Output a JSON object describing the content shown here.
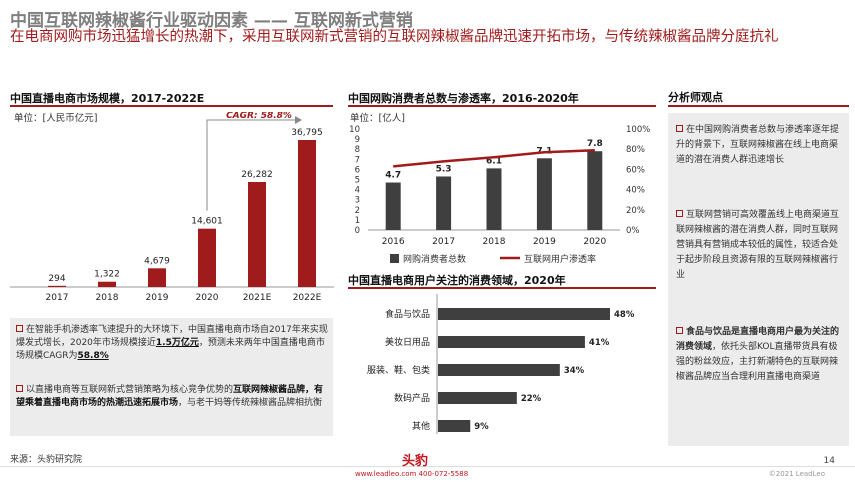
{
  "header": {
    "title": "中国互联网辣椒酱行业驱动因素 —— 互联网新式营销",
    "subtitle": "在电商网购市场迅猛增长的热潮下，采用互联网新式营销的互联网辣椒酱品牌迅速开拓市场，与传统辣椒酱品牌分庭抗礼"
  },
  "live_chart": {
    "title": "中国直播电商市场规模，2017-2022E",
    "unit": "单位：[人民币亿元]",
    "cagr_label": "CAGR: 58.8%",
    "bar_color": "#a01c1c",
    "chart_data": {
      "type": "bar",
      "categories": [
        "2017",
        "2018",
        "2019",
        "2020",
        "2021E",
        "2022E"
      ],
      "values": [
        294,
        1322,
        4679,
        14601,
        26282,
        36795
      ],
      "value_labels": [
        "294",
        "1,322",
        "4,679",
        "14,601",
        "26,282",
        "36,795"
      ],
      "ylim": [
        0,
        36795
      ]
    }
  },
  "online_chart": {
    "title": "中国网购消费者总数与渗透率，2016-2020年",
    "unit": "单位：[亿人]",
    "bar_color": "#3f3f3f",
    "line_color": "#a01c1c",
    "legend": [
      "网购消费者总数",
      "互联网用户渗透率"
    ],
    "chart_data": {
      "type": "bar",
      "categories": [
        "2016",
        "2017",
        "2018",
        "2019",
        "2020"
      ],
      "series": [
        {
          "name": "网购消费者总数",
          "values": [
            4.7,
            5.3,
            6.1,
            7.1,
            7.8
          ],
          "labels": [
            "4.7",
            "5.3",
            "6.1",
            "7.1",
            "7.8"
          ]
        },
        {
          "name": "互联网用户渗透率",
          "values": [
            63,
            68,
            72,
            77,
            79
          ]
        }
      ],
      "y_ticks": [
        "0",
        "1",
        "2",
        "3",
        "4",
        "5",
        "6",
        "7",
        "8",
        "9",
        "10"
      ],
      "y2_ticks": [
        "0%",
        "20%",
        "40%",
        "60%",
        "80%",
        "100%"
      ],
      "ylim": [
        0,
        10
      ],
      "y2lim": [
        0,
        100
      ]
    }
  },
  "focus_chart": {
    "title": "中国直播电商用户关注的消费领域，2020年",
    "bar_color": "#3f3f3f",
    "chart_data": {
      "type": "bar",
      "orientation": "horizontal",
      "categories": [
        "食品与饮品",
        "美妆日用品",
        "服装、鞋、包类",
        "数码产品",
        "其他"
      ],
      "values": [
        48,
        41,
        34,
        22,
        9
      ],
      "labels": [
        "48%",
        "41%",
        "34%",
        "22%",
        "9%"
      ],
      "xlim": [
        0,
        48
      ]
    }
  },
  "notes": {
    "n1_pre": "在智能手机渗透率飞速提升的大环境下，中国直播电商市场自2017年来实现爆发式增长，2020年市场规模接近",
    "n1_em": "1.5万亿元",
    "n1_mid": "，预测未来两年中国直播电商市场规模CAGR为",
    "n1_em2": "58.8%",
    "n2_pre": "以直播电商等互联网新式营销策略为核心竞争优势的",
    "n2_bold": "互联网辣椒酱品牌，有望乘着直播电商市场的热潮迅速拓展市场",
    "n2_post": "，与老干妈等传统辣椒酱品牌相抗衡"
  },
  "analyst": {
    "heading": "分析师观点",
    "p1": "在中国网购消费者总数与渗透率逐年提升的背景下，互联网辣椒酱在线上电商渠道的潜在消费人群迅速增长",
    "p2": "互联网营销可高效覆盖线上电商渠道互联网辣椒酱的潜在消费人群，同时互联网营销具有营销成本较低的属性，较适合处于起步阶段且资源有限的互联网辣椒酱行业",
    "p3_bold": "食品与饮品是直播电商用户最为关注的消费领域",
    "p3_rest": "，依托头部KOL直播带货具有极强的粉丝效应，主打新潮特色的互联网辣椒酱品牌应当合理利用直播电商渠道"
  },
  "footer": {
    "source": "来源：头豹研究院",
    "page": "14",
    "brand": "头豹",
    "contact": "www.leadleo.com  400-072-5588",
    "copyright": "©2021 LeadLeo"
  }
}
